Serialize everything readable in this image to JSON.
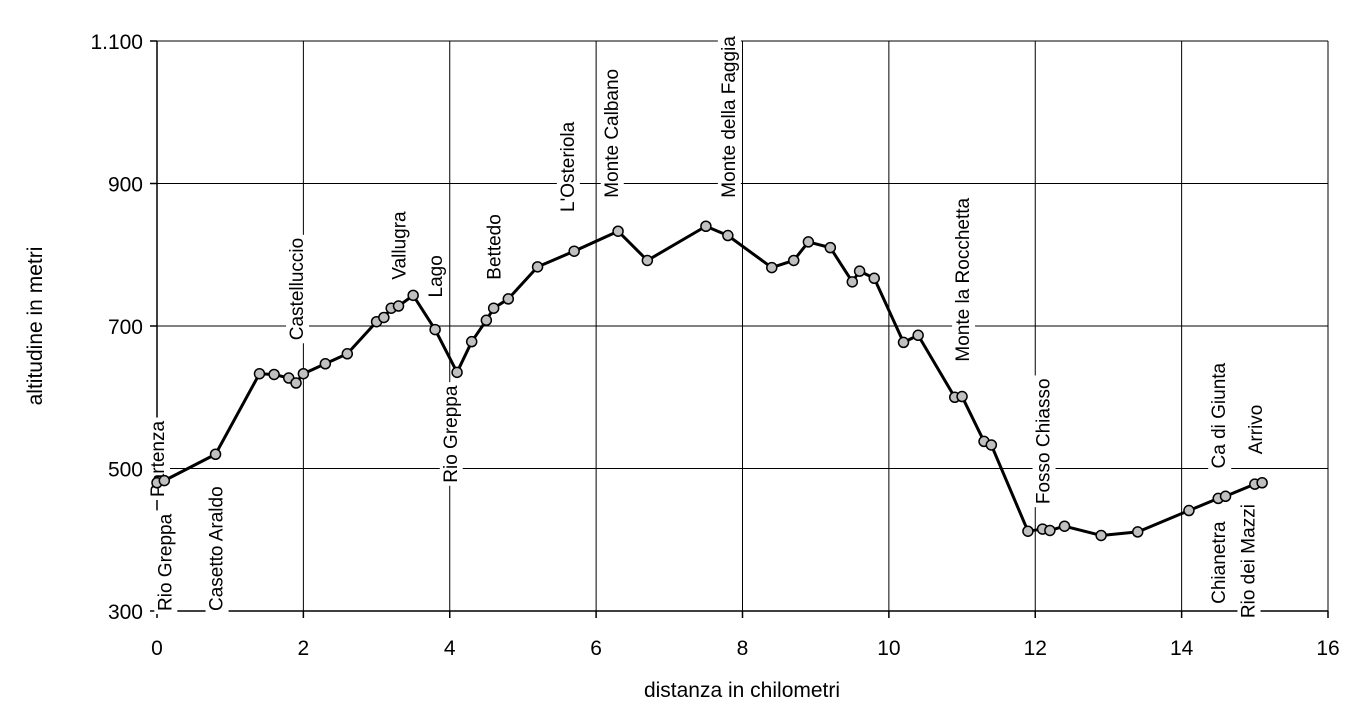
{
  "chart_data": {
    "type": "line",
    "xlabel": "distanza in chilometri",
    "ylabel": "altitudine  in metri",
    "xlim": [
      0,
      16
    ],
    "ylim": [
      300,
      1100
    ],
    "x_ticks": [
      0,
      2,
      4,
      6,
      8,
      10,
      12,
      14,
      16
    ],
    "x_tick_labels": [
      "0",
      "2",
      "4",
      "6",
      "8",
      "10",
      "12",
      "14",
      "16"
    ],
    "y_ticks": [
      300,
      500,
      700,
      900,
      1100
    ],
    "y_tick_labels": [
      "300",
      "500",
      "700",
      "900",
      "1.100"
    ],
    "grid": true,
    "series": [
      {
        "color": "#000000",
        "marker_color": "#c0c0c0",
        "points": [
          [
            0.0,
            480
          ],
          [
            0.1,
            483
          ],
          [
            0.8,
            520
          ],
          [
            1.4,
            633
          ],
          [
            1.6,
            632
          ],
          [
            1.8,
            627
          ],
          [
            1.9,
            620
          ],
          [
            2.0,
            633
          ],
          [
            2.3,
            647
          ],
          [
            2.6,
            661
          ],
          [
            3.0,
            706
          ],
          [
            3.1,
            712
          ],
          [
            3.2,
            725
          ],
          [
            3.3,
            728
          ],
          [
            3.5,
            743
          ],
          [
            3.8,
            695
          ],
          [
            4.1,
            635
          ],
          [
            4.3,
            678
          ],
          [
            4.5,
            708
          ],
          [
            4.6,
            725
          ],
          [
            4.8,
            738
          ],
          [
            5.2,
            783
          ],
          [
            5.7,
            805
          ],
          [
            6.3,
            833
          ],
          [
            6.7,
            792
          ],
          [
            7.5,
            840
          ],
          [
            7.8,
            827
          ],
          [
            8.4,
            782
          ],
          [
            8.7,
            792
          ],
          [
            8.9,
            818
          ],
          [
            9.2,
            810
          ],
          [
            9.5,
            762
          ],
          [
            9.6,
            777
          ],
          [
            9.8,
            767
          ],
          [
            10.2,
            677
          ],
          [
            10.4,
            687
          ],
          [
            10.9,
            600
          ],
          [
            11.0,
            601
          ],
          [
            11.3,
            538
          ],
          [
            11.4,
            533
          ],
          [
            11.9,
            412
          ],
          [
            12.1,
            415
          ],
          [
            12.2,
            413
          ],
          [
            12.4,
            419
          ],
          [
            12.9,
            406
          ],
          [
            13.4,
            411
          ],
          [
            14.1,
            441
          ],
          [
            14.5,
            458
          ],
          [
            14.6,
            461
          ],
          [
            15.0,
            478
          ],
          [
            15.1,
            480
          ]
        ]
      }
    ],
    "annotations": [
      {
        "text": "Partenza",
        "x": 0.0,
        "y": 460
      },
      {
        "text": "Rio Greppa",
        "x": 0.1,
        "y": 300
      },
      {
        "text": "Casetto Araldo",
        "x": 0.8,
        "y": 300
      },
      {
        "text": "Castelluccio",
        "x": 1.9,
        "y": 680
      },
      {
        "text": "Vallugra",
        "x": 3.3,
        "y": 765
      },
      {
        "text": "Lago",
        "x": 3.8,
        "y": 740
      },
      {
        "text": "Rio Greppa",
        "x": 4.0,
        "y": 480
      },
      {
        "text": "Bettedo",
        "x": 4.6,
        "y": 765
      },
      {
        "text": "L'Osteriola",
        "x": 5.6,
        "y": 860
      },
      {
        "text": "Monte Calbano",
        "x": 6.2,
        "y": 880
      },
      {
        "text": "Monte della Faggia",
        "x": 7.8,
        "y": 880
      },
      {
        "text": "Monte la Rocchetta",
        "x": 11.0,
        "y": 650
      },
      {
        "text": "Fosso Chiasso",
        "x": 12.1,
        "y": 450
      },
      {
        "text": "Chianetra",
        "x": 14.5,
        "y": 310
      },
      {
        "text": "Rio dei Mazzi",
        "x": 14.9,
        "y": 290
      },
      {
        "text": "Ca di Giunta",
        "x": 14.5,
        "y": 500
      },
      {
        "text": "Arrivo",
        "x": 15.0,
        "y": 520
      }
    ]
  }
}
